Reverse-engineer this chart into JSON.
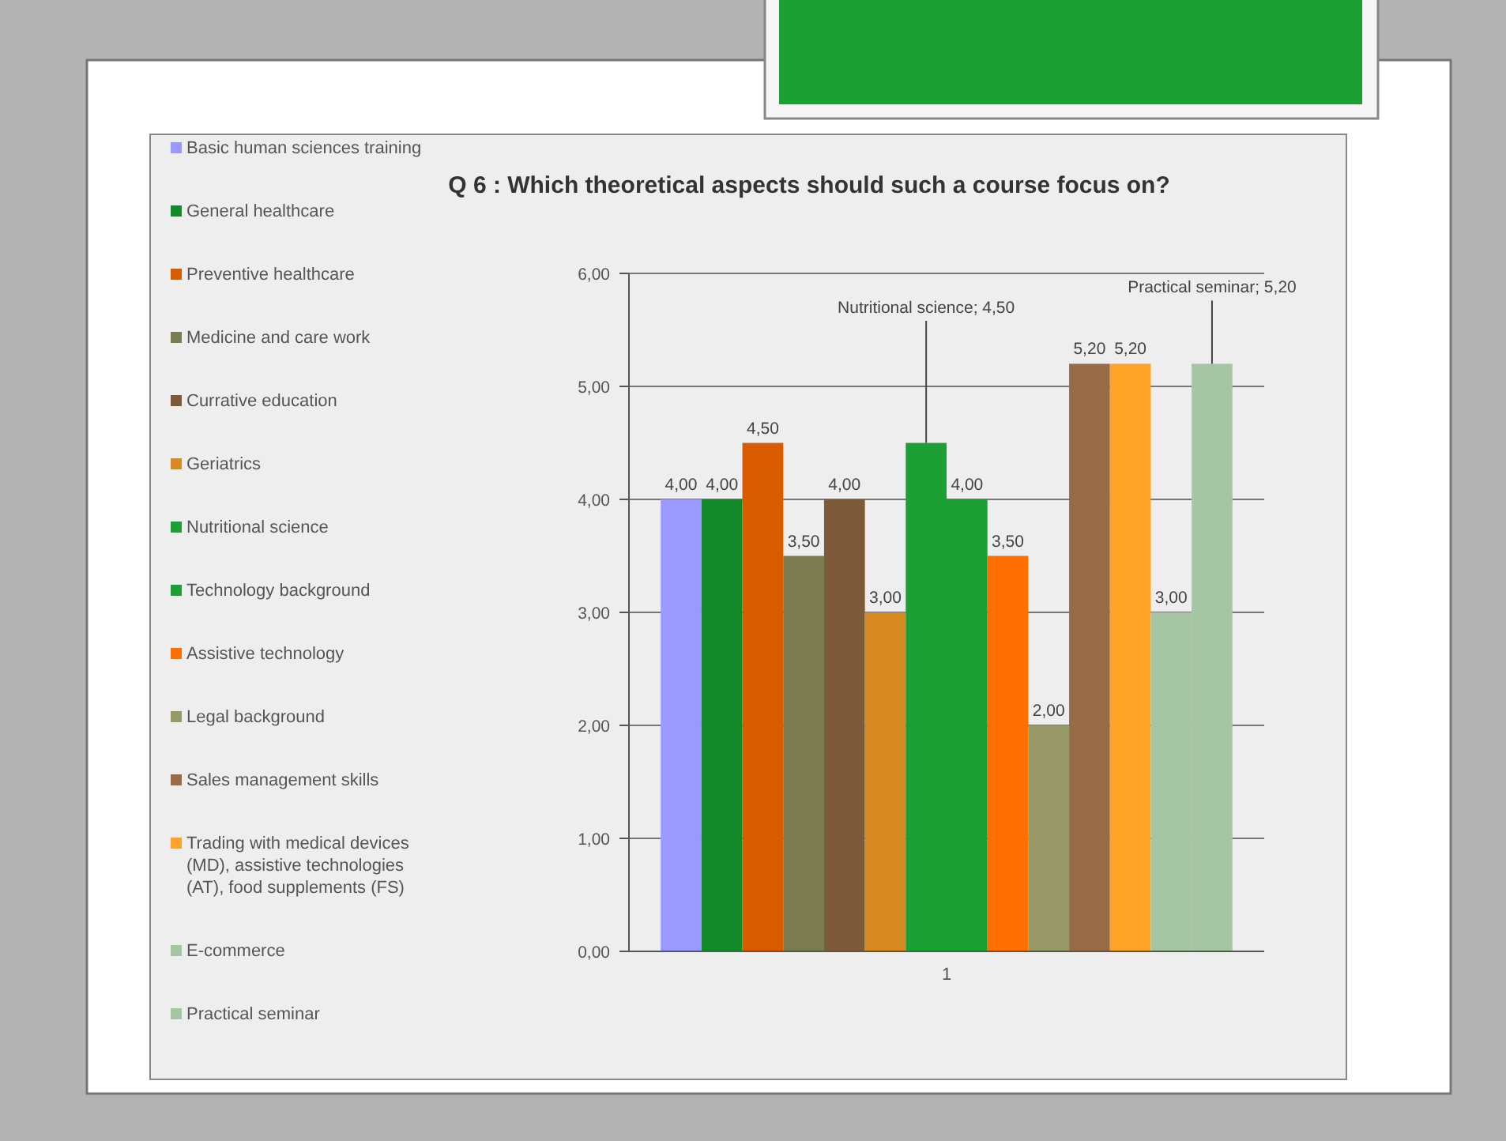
{
  "chart_data": {
    "type": "bar",
    "title": "Q 6 : Which theoretical aspects should such a course focus on?",
    "categories": [
      "1"
    ],
    "series": [
      {
        "name": "Basic human sciences training",
        "color": "#9999ff",
        "values": [
          4.0
        ],
        "value_labels": [
          "4,00"
        ]
      },
      {
        "name": "General healthcare",
        "color": "#138a2a",
        "values": [
          4.0
        ],
        "value_labels": [
          "4,00"
        ]
      },
      {
        "name": "Preventive healthcare",
        "color": "#d95b00",
        "values": [
          4.5
        ],
        "value_labels": [
          "4,50"
        ]
      },
      {
        "name": "Medicine and care work",
        "color": "#7b7b52",
        "values": [
          3.5
        ],
        "value_labels": [
          "3,50"
        ]
      },
      {
        "name": "Currative education",
        "color": "#7d5a3a",
        "values": [
          4.0
        ],
        "value_labels": [
          "4,00"
        ]
      },
      {
        "name": "Geriatrics",
        "color": "#d88a22",
        "values": [
          3.0
        ],
        "value_labels": [
          "3,00"
        ]
      },
      {
        "name": "Nutritional science",
        "color": "#1ca035",
        "values": [
          4.5
        ],
        "value_labels": [
          "Nutritional science; 4,50"
        ]
      },
      {
        "name": "Technology background",
        "color": "#1ca035",
        "values": [
          4.0
        ],
        "value_labels": [
          "4,00"
        ]
      },
      {
        "name": "Assistive technology",
        "color": "#ff7000",
        "values": [
          3.5
        ],
        "value_labels": [
          "3,50"
        ]
      },
      {
        "name": "Legal background",
        "color": "#979968",
        "values": [
          2.0
        ],
        "value_labels": [
          "2,00"
        ]
      },
      {
        "name": "Sales management skills",
        "color": "#966b45",
        "values": [
          5.2
        ],
        "value_labels": [
          "5,20"
        ]
      },
      {
        "name": "Trading with medical devices (MD), assistive technologies (AT), food supplements (FS)",
        "color": "#ffa328",
        "values": [
          5.2
        ],
        "value_labels": [
          "5,20"
        ]
      },
      {
        "name": "E-commerce",
        "color": "#a6c6a3",
        "values": [
          3.0
        ],
        "value_labels": [
          "3,00"
        ]
      },
      {
        "name": "Practical seminar",
        "color": "#a6c6a3",
        "values": [
          5.2
        ],
        "value_labels": [
          "Practical seminar; 5,20"
        ]
      }
    ],
    "ylim": [
      0,
      6
    ],
    "yticks": [
      {
        "value": 0,
        "label": "0,00"
      },
      {
        "value": 1,
        "label": "1,00"
      },
      {
        "value": 2,
        "label": "2,00"
      },
      {
        "value": 3,
        "label": "3,00"
      },
      {
        "value": 4,
        "label": "4,00"
      },
      {
        "value": 5,
        "label": "5,00"
      },
      {
        "value": 6,
        "label": "6,00"
      }
    ],
    "grid": "y",
    "legend": "left"
  }
}
